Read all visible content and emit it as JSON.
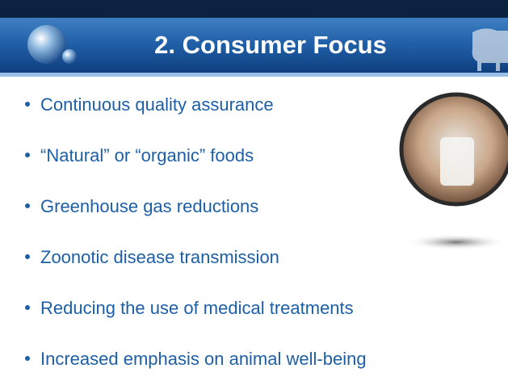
{
  "header": {
    "title": "2. Consumer Focus"
  },
  "bullets": [
    "Continuous quality assurance",
    "“Natural” or “organic” foods",
    "Greenhouse gas reductions",
    "Zoonotic disease transmission",
    "Reducing the use of medical treatments",
    "Increased emphasis on animal well-being"
  ]
}
